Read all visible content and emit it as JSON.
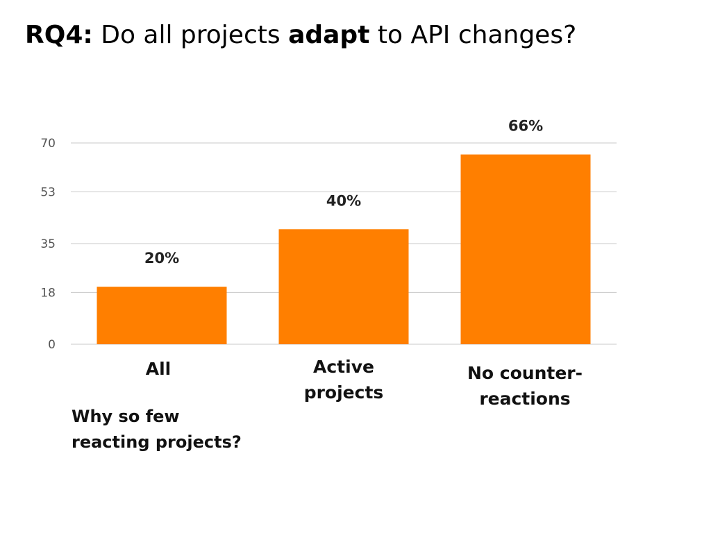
{
  "title": {
    "prefix": "RQ4:",
    "part1": " Do all projects ",
    "emph": "adapt",
    "part2": " to API changes?"
  },
  "chart_data": {
    "type": "bar",
    "categories": [
      "All",
      "Active projects",
      "No counter-reactions"
    ],
    "category_lines": [
      [
        "All"
      ],
      [
        "Active",
        "projects"
      ],
      [
        "No counter-",
        "reactions"
      ]
    ],
    "values": [
      20,
      40,
      66
    ],
    "data_labels": [
      "20%",
      "40%",
      "66%"
    ],
    "yticks": [
      0,
      18,
      35,
      53,
      70
    ],
    "ylim": [
      0,
      70
    ],
    "bar_color": "#FF7F00",
    "grid": true,
    "title": "",
    "xlabel": "",
    "ylabel": ""
  },
  "note": {
    "line1": "Why so few",
    "line2": "reacting projects?"
  }
}
